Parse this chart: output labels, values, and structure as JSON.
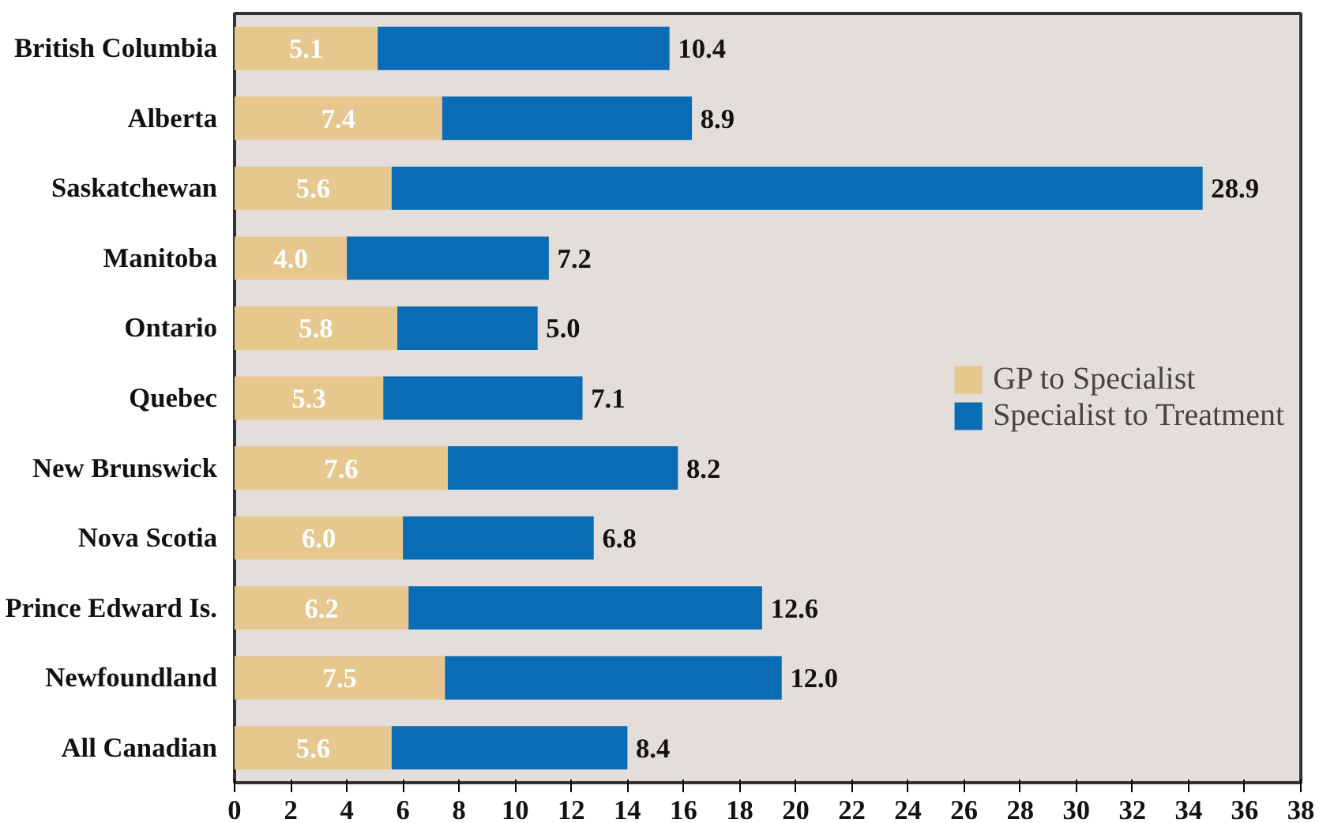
{
  "chart_data": {
    "type": "bar",
    "orientation": "horizontal",
    "stacked": true,
    "categories": [
      "British Columbia",
      "Alberta",
      "Saskatchewan",
      "Manitoba",
      "Ontario",
      "Quebec",
      "New Brunswick",
      "Nova Scotia",
      "Prince Edward Is.",
      "Newfoundland",
      "All Canadian"
    ],
    "series": [
      {
        "name": "GP to Specialist",
        "color": "#e6c78e",
        "values": [
          5.1,
          7.4,
          5.6,
          4.0,
          5.8,
          5.3,
          7.6,
          6.0,
          6.2,
          7.5,
          5.6
        ],
        "value_labels": [
          "5.1",
          "7.4",
          "5.6",
          "4.0",
          "5.8",
          "5.3",
          "7.6",
          "6.0",
          "6.2",
          "7.5",
          "5.6"
        ]
      },
      {
        "name": "Specialist to Treatment",
        "color": "#0a6cb5",
        "values": [
          10.4,
          8.9,
          28.9,
          7.2,
          5.0,
          7.1,
          8.2,
          6.8,
          12.6,
          12.0,
          8.4
        ],
        "value_labels": [
          "10.4",
          "8.9",
          "28.9",
          "7.2",
          "5.0",
          "7.1",
          "8.2",
          "6.8",
          "12.6",
          "12.0",
          "8.4"
        ]
      }
    ],
    "xlim": [
      0,
      38
    ],
    "xticks": [
      0,
      2,
      4,
      6,
      8,
      10,
      12,
      14,
      16,
      18,
      20,
      22,
      24,
      26,
      28,
      30,
      32,
      34,
      36,
      38
    ],
    "grid": false,
    "legend": "right"
  }
}
